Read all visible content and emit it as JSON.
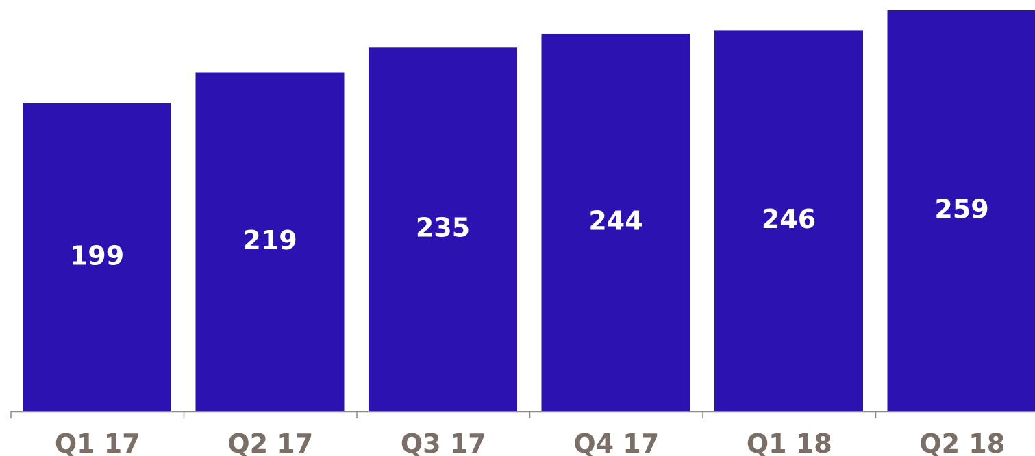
{
  "chart_data": {
    "type": "bar",
    "categories": [
      "Q1 17",
      "Q2 17",
      "Q3 17",
      "Q4 17",
      "Q1 18",
      "Q2 18"
    ],
    "values": [
      199,
      219,
      235,
      244,
      246,
      259
    ],
    "data_labels": [
      "199",
      "219",
      "235",
      "244",
      "246",
      "259"
    ],
    "title": "",
    "xlabel": "",
    "ylabel": "",
    "ylim": [
      0,
      259
    ],
    "grid": false,
    "legend": "none"
  },
  "colors": {
    "bar": "#2c12b0",
    "axis": "#8a8a8a",
    "tick_label": "#7a6e66",
    "data_label": "#ffffff"
  }
}
